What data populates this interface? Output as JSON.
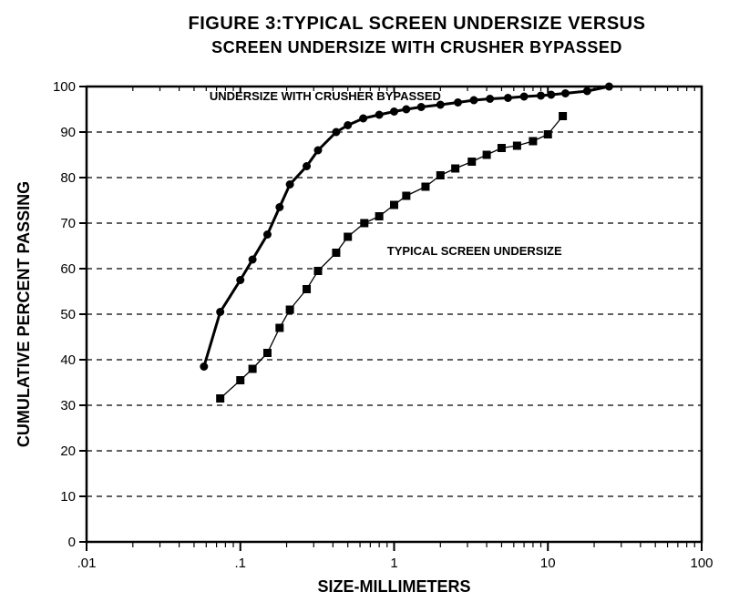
{
  "chart": {
    "type": "line",
    "title_line1": "FIGURE 3:TYPICAL SCREEN UNDERSIZE VERSUS",
    "title_line2": "SCREEN UNDERSIZE WITH CRUSHER BYPASSED",
    "title_fontsize": 20,
    "subtitle_fontsize": 18,
    "xlabel": "SIZE-MILLIMETERS",
    "ylabel": "CUMULATIVE PERCENT PASSING",
    "label_fontsize": 18,
    "tick_fontsize": 15,
    "background_color": "#ffffff",
    "axis_color": "#000000",
    "grid_color": "#000000",
    "grid_dash": "6,5",
    "x_scale": "log",
    "y_scale": "linear",
    "xlim": [
      0.01,
      100
    ],
    "ylim": [
      0,
      100
    ],
    "x_major_ticks": [
      0.01,
      0.1,
      1,
      10,
      100
    ],
    "x_tick_labels": [
      ".01",
      ".1",
      "1",
      "10",
      "100"
    ],
    "y_ticks": [
      0,
      10,
      20,
      30,
      40,
      50,
      60,
      70,
      80,
      90,
      100
    ],
    "plot_box_linewidth": 2.5,
    "series": [
      {
        "name": "Undersize with crusher bypassed",
        "label": "UNDERSIZE WITH CRUSHER BYPASSED",
        "label_xy": [
          0.063,
          97
        ],
        "label_fontsize": 13,
        "color": "#000000",
        "line_width": 3,
        "marker": "circle",
        "marker_size": 4,
        "data": [
          [
            0.058,
            38.5
          ],
          [
            0.074,
            50.5
          ],
          [
            0.1,
            57.5
          ],
          [
            0.12,
            62
          ],
          [
            0.15,
            67.5
          ],
          [
            0.18,
            73.5
          ],
          [
            0.21,
            78.5
          ],
          [
            0.27,
            82.5
          ],
          [
            0.32,
            86
          ],
          [
            0.42,
            90
          ],
          [
            0.5,
            91.5
          ],
          [
            0.63,
            93.0
          ],
          [
            0.8,
            93.8
          ],
          [
            1.0,
            94.5
          ],
          [
            1.2,
            95.0
          ],
          [
            1.5,
            95.5
          ],
          [
            2.0,
            96.0
          ],
          [
            2.6,
            96.5
          ],
          [
            3.3,
            97
          ],
          [
            4.2,
            97.3
          ],
          [
            5.5,
            97.5
          ],
          [
            7.0,
            97.8
          ],
          [
            9.0,
            98.0
          ],
          [
            10.5,
            98.2
          ],
          [
            13.0,
            98.5
          ],
          [
            18.0,
            99.0
          ],
          [
            25.0,
            100.0
          ]
        ]
      },
      {
        "name": "Typical screen undersize",
        "label": "TYPICAL SCREEN UNDERSIZE",
        "label_xy": [
          0.9,
          63
        ],
        "label_fontsize": 13,
        "color": "#000000",
        "line_width": 1.3,
        "marker": "square",
        "marker_size": 4,
        "data": [
          [
            0.074,
            31.5
          ],
          [
            0.1,
            35.5
          ],
          [
            0.12,
            38
          ],
          [
            0.15,
            41.5
          ],
          [
            0.18,
            47
          ],
          [
            0.21,
            51
          ],
          [
            0.27,
            55.5
          ],
          [
            0.32,
            59.5
          ],
          [
            0.42,
            63.5
          ],
          [
            0.5,
            67
          ],
          [
            0.64,
            70
          ],
          [
            0.8,
            71.5
          ],
          [
            1.0,
            74
          ],
          [
            1.2,
            76
          ],
          [
            1.6,
            78
          ],
          [
            2.0,
            80.5
          ],
          [
            2.5,
            82
          ],
          [
            3.2,
            83.5
          ],
          [
            4.0,
            85
          ],
          [
            5.0,
            86.5
          ],
          [
            6.3,
            87
          ],
          [
            8.0,
            88
          ],
          [
            10.0,
            89.5
          ],
          [
            12.5,
            93.5
          ]
        ]
      }
    ]
  }
}
